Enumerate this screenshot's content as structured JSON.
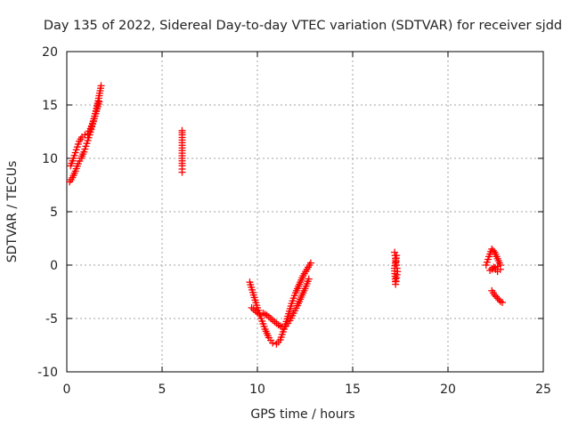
{
  "chart_data": {
    "type": "scatter",
    "title": "Day 135 of 2022, Sidereal Day-to-day VTEC variation (SDTVAR) for receiver sjdd",
    "xlabel": "GPS time / hours",
    "ylabel": "SDTVAR / TECUs",
    "xlim": [
      0,
      25
    ],
    "ylim": [
      -10,
      20
    ],
    "xticks": [
      0,
      5,
      10,
      15,
      20,
      25
    ],
    "yticks": [
      -10,
      -5,
      0,
      5,
      10,
      15,
      20
    ],
    "grid": true,
    "marker": "+",
    "color": "#ff0000",
    "series": [
      {
        "name": "SDTVAR",
        "clusters": [
          {
            "x": [
              0.15,
              0.3,
              0.45,
              0.6,
              0.75,
              0.9,
              1.05,
              1.2,
              1.35,
              1.5,
              1.65,
              1.8
            ],
            "y": [
              7.8,
              8.2,
              8.8,
              9.5,
              10.0,
              10.6,
              11.4,
              12.2,
              13.2,
              14.2,
              15.4,
              16.8
            ]
          },
          {
            "x": [
              0.2,
              0.35,
              0.5,
              0.65,
              0.8,
              0.95,
              1.1,
              1.25,
              1.4,
              1.55,
              1.7
            ],
            "y": [
              9.3,
              10.0,
              10.8,
              11.6,
              12.0,
              12.2,
              12.3,
              12.8,
              13.5,
              14.4,
              15.3
            ]
          },
          {
            "x": [
              6.05,
              6.05,
              6.05,
              6.05,
              6.05
            ],
            "y": [
              12.6,
              12.2,
              10.0,
              9.3,
              8.7
            ]
          },
          {
            "x": [
              9.6,
              9.8,
              10.0,
              10.2,
              10.4,
              10.6,
              10.8,
              11.0,
              11.2,
              11.4,
              11.6,
              11.8,
              12.0,
              12.2,
              12.4,
              12.6,
              12.8
            ],
            "y": [
              -1.6,
              -2.8,
              -4.0,
              -5.0,
              -6.0,
              -6.8,
              -7.3,
              -7.4,
              -7.0,
              -6.0,
              -4.8,
              -3.6,
              -2.6,
              -1.8,
              -1.0,
              -0.4,
              0.2
            ]
          },
          {
            "x": [
              9.7,
              9.9,
              10.1,
              10.3,
              10.5,
              10.7,
              10.9,
              11.1,
              11.3,
              11.5,
              11.7,
              11.9,
              12.1,
              12.3,
              12.5,
              12.7
            ],
            "y": [
              -4.0,
              -4.3,
              -4.6,
              -4.5,
              -4.7,
              -5.0,
              -5.3,
              -5.6,
              -5.8,
              -5.7,
              -5.2,
              -4.5,
              -3.8,
              -3.0,
              -2.2,
              -1.3
            ]
          },
          {
            "x": [
              17.2,
              17.25,
              17.3,
              17.35,
              17.3,
              17.25,
              17.2,
              17.3
            ],
            "y": [
              1.2,
              0.6,
              0.0,
              -0.6,
              -1.2,
              -1.8,
              -0.3,
              0.9
            ]
          },
          {
            "x": [
              22.0,
              22.15,
              22.3,
              22.45,
              22.6,
              22.75,
              22.2,
              22.4,
              22.6,
              22.75
            ],
            "y": [
              0.0,
              0.8,
              1.5,
              1.2,
              0.6,
              0.0,
              -0.5,
              -0.2,
              -0.6,
              -0.4
            ]
          },
          {
            "x": [
              22.3,
              22.45,
              22.6,
              22.75,
              22.85
            ],
            "y": [
              -2.4,
              -2.8,
              -3.1,
              -3.4,
              -3.5
            ]
          }
        ]
      }
    ]
  }
}
